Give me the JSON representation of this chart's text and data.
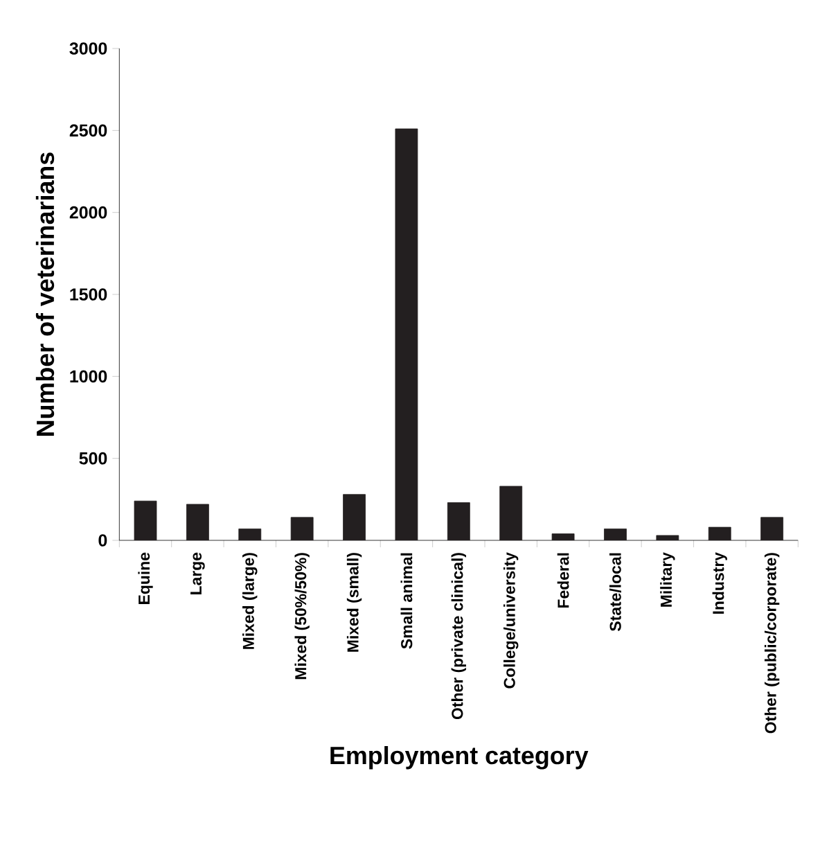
{
  "chart_data": {
    "type": "bar",
    "xlabel": "Employment category",
    "ylabel": "Number of veterinarians",
    "categories": [
      "Equine",
      "Large",
      "Mixed (large)",
      "Mixed (50%/50%)",
      "Mixed (small)",
      "Small animal",
      "Other (private clinical)",
      "College/university",
      "Federal",
      "State/local",
      "Military",
      "Industry",
      "Other (public/corporate)"
    ],
    "values": [
      240,
      220,
      70,
      140,
      280,
      2510,
      230,
      330,
      40,
      70,
      30,
      80,
      140
    ],
    "color": "#231f20",
    "ylim": [
      0,
      3000
    ],
    "yticks": [
      0,
      500,
      1000,
      1500,
      2000,
      2500,
      3000
    ]
  }
}
